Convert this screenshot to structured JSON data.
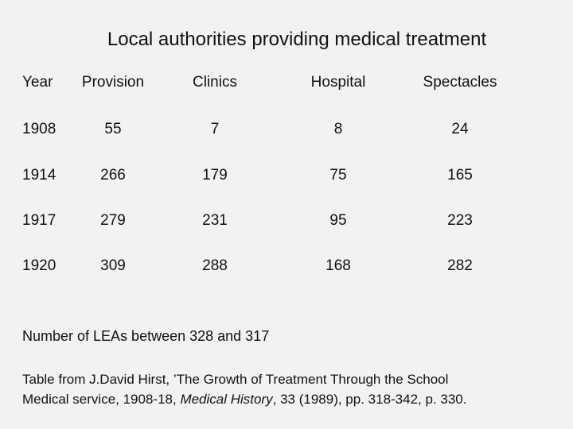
{
  "title": "Local authorities providing medical treatment",
  "table": {
    "headers": [
      "Year",
      "Provision",
      "Clinics",
      "Hospital",
      "Spectacles"
    ],
    "rows": [
      [
        "1908",
        "55",
        "7",
        "8",
        "24"
      ],
      [
        "1914",
        "266",
        "179",
        "75",
        "165"
      ],
      [
        "1917",
        "279",
        "231",
        "95",
        "223"
      ],
      [
        "1920",
        "309",
        "288",
        "168",
        "282"
      ]
    ]
  },
  "note": "Number of LEAs between 328 and 317",
  "source": {
    "line1": "Table from J.David Hirst, ’The Growth of Treatment Through   the School",
    "line2_prefix": "Medical service, 1908-18, ",
    "line2_journal": "Medical History",
    "line2_suffix": ", 33 (1989), pp. 318-342, p. 330."
  }
}
